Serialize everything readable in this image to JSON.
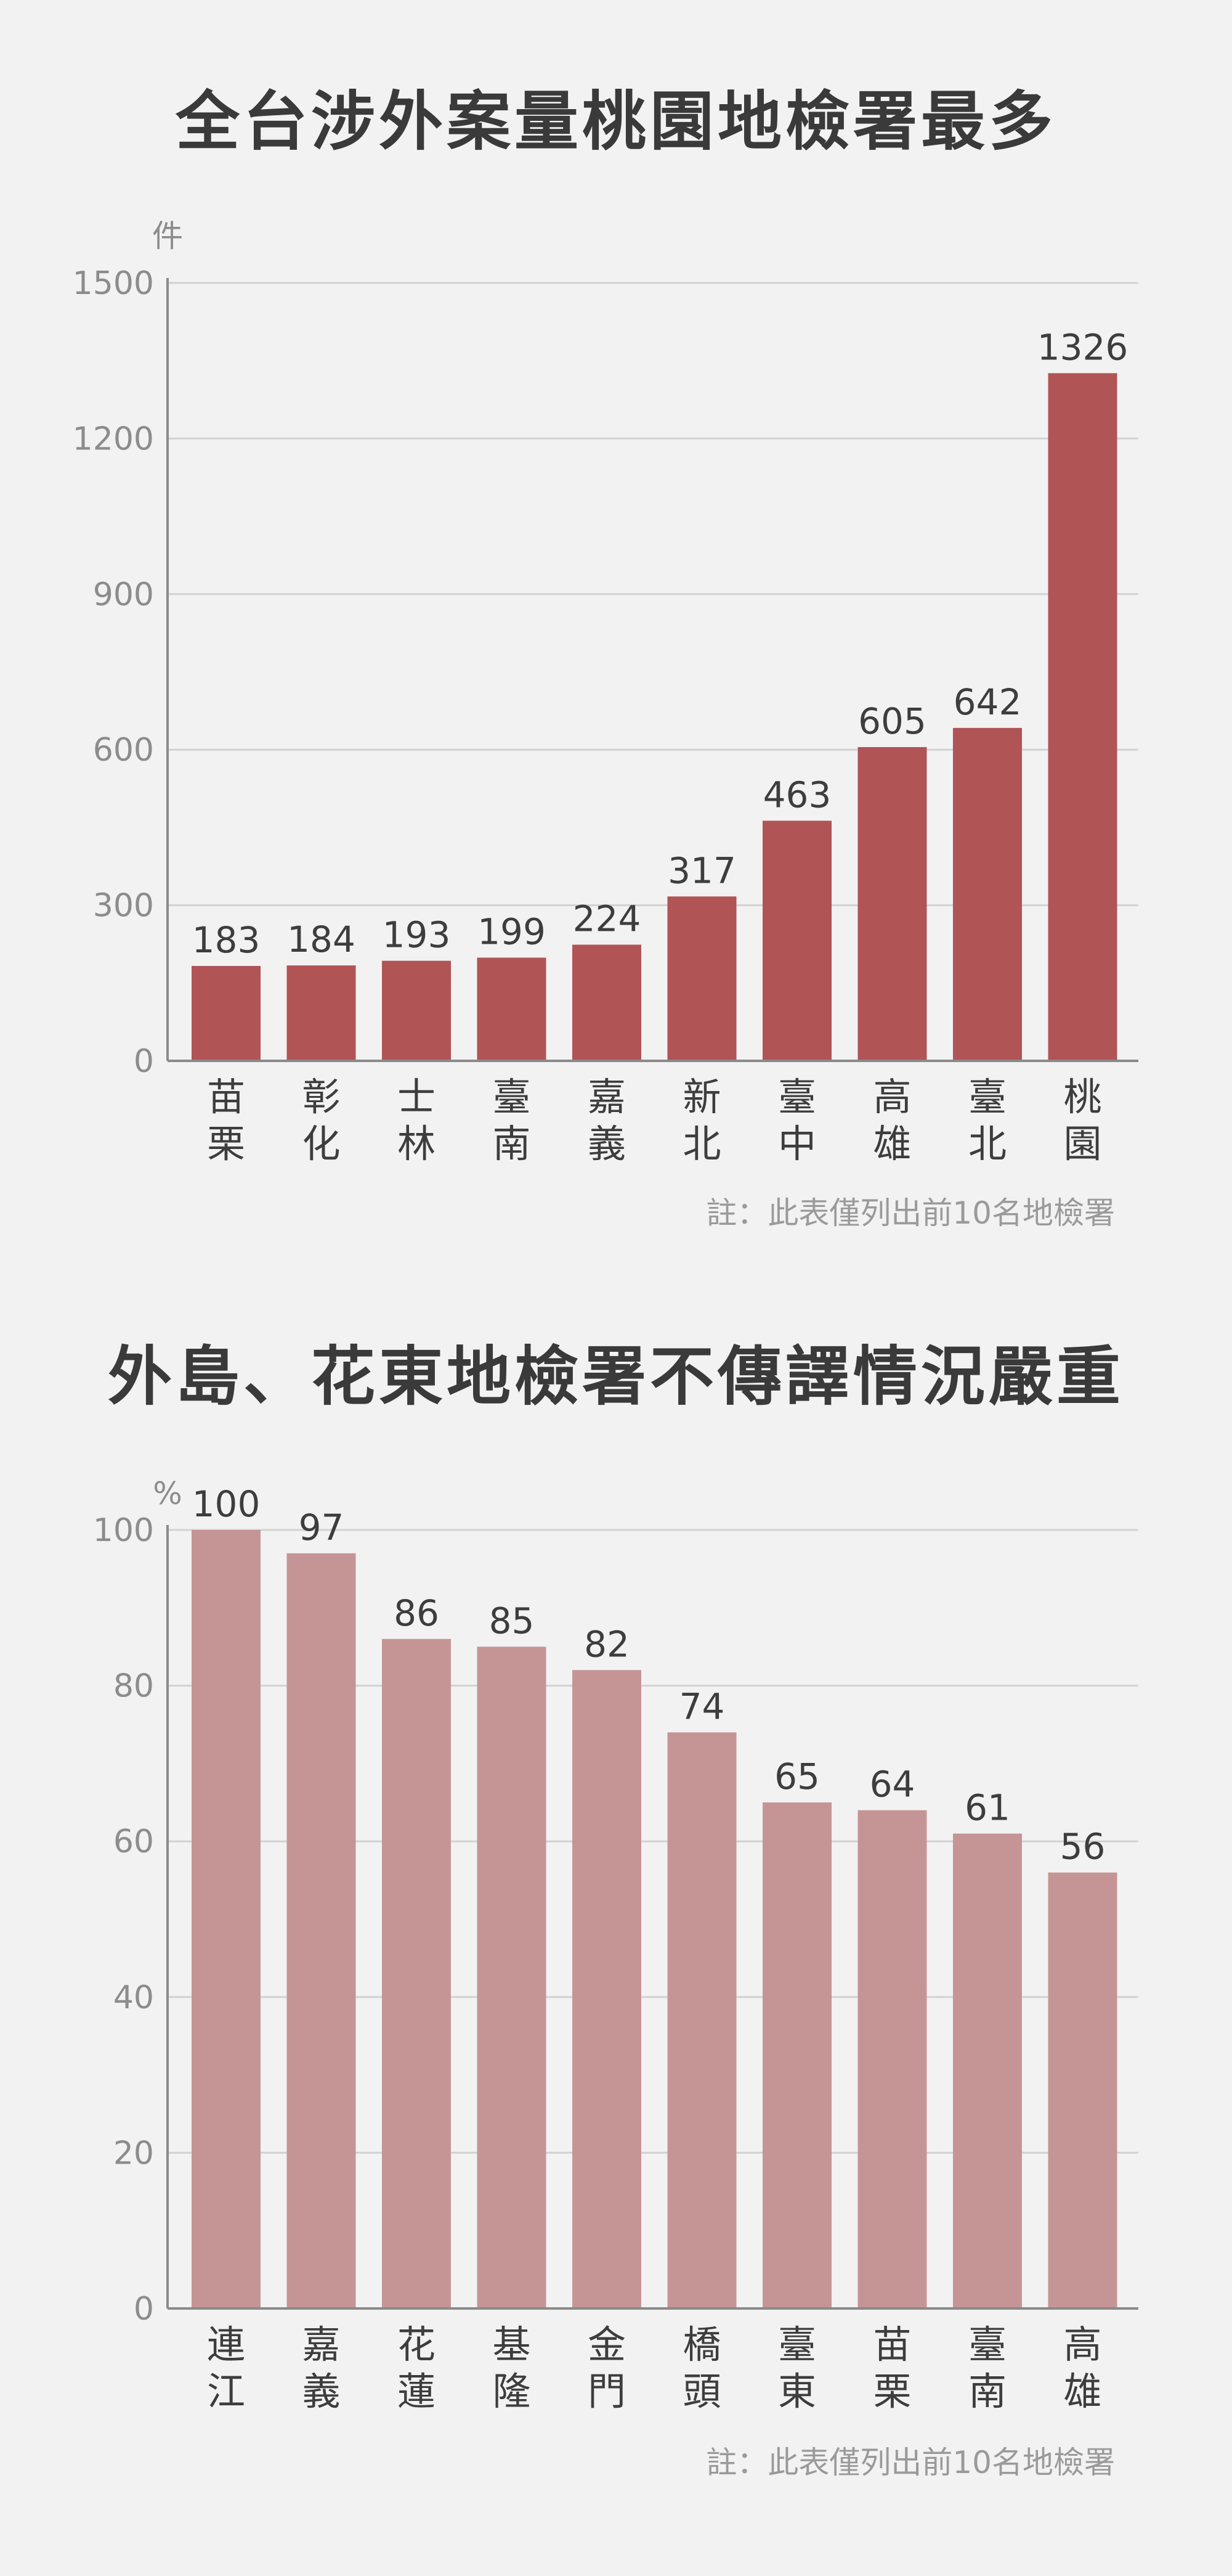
{
  "charts": [
    {
      "title": "全台涉外案量桃園地檢署最多",
      "note": "註：此表僅列出前10名地檢署",
      "unit": "件",
      "color": "#b05456"
    },
    {
      "title": "外島、花東地檢署不傳譯情況嚴重",
      "note": "註：此表僅列出前10名地檢署",
      "unit": "%",
      "color": "#c59596"
    }
  ],
  "chart_data": [
    {
      "type": "bar",
      "title": "全台涉外案量桃園地檢署最多",
      "ylabel": "件",
      "categories": [
        "苗栗",
        "彰化",
        "士林",
        "臺南",
        "嘉義",
        "新北",
        "臺中",
        "高雄",
        "臺北",
        "桃園"
      ],
      "values": [
        183,
        184,
        193,
        199,
        224,
        317,
        463,
        605,
        642,
        1326
      ],
      "ylim": [
        0,
        1500
      ],
      "yticks": [
        0,
        300,
        600,
        900,
        1200,
        1500
      ],
      "grid": true
    },
    {
      "type": "bar",
      "title": "外島、花東地檢署不傳譯情況嚴重",
      "ylabel": "%",
      "categories": [
        "連江",
        "嘉義",
        "花蓮",
        "基隆",
        "金門",
        "橋頭",
        "臺東",
        "苗栗",
        "臺南",
        "高雄"
      ],
      "values": [
        100,
        97,
        86,
        85,
        82,
        74,
        65,
        64,
        61,
        56
      ],
      "ylim": [
        0,
        100
      ],
      "yticks": [
        0,
        20,
        40,
        60,
        80,
        100
      ],
      "grid": true
    }
  ]
}
